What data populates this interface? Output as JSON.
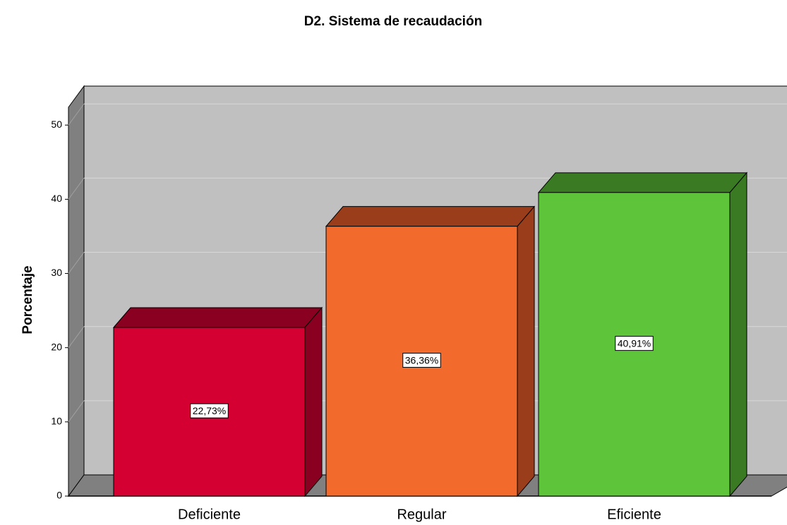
{
  "chart_data": {
    "type": "bar3d",
    "title": "D2. Sistema de recaudación",
    "y_label": "Porcentaje",
    "categories": [
      "Deficiente",
      "Regular",
      "Eficiente"
    ],
    "values": [
      22.73,
      36.36,
      40.91
    ],
    "value_labels": [
      "22,73%",
      "36,36%",
      "40,91%"
    ],
    "colors": [
      "#d50032",
      "#f26a2c",
      "#5ec43a"
    ],
    "side_colors": [
      "#8a0020",
      "#9a3d1a",
      "#3a7a22"
    ],
    "ylim": [
      0,
      52.4
    ],
    "yticks": [
      0,
      10,
      20,
      30,
      40,
      50
    ],
    "grid": true
  }
}
